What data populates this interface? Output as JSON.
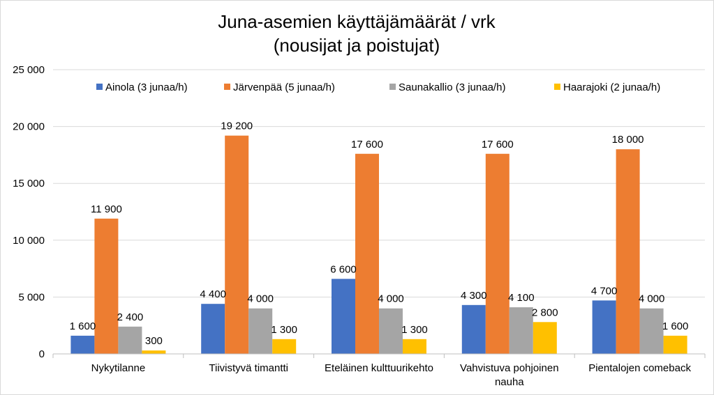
{
  "chart_data": {
    "type": "bar",
    "title": "Juna-asemien käyttäjämäärät / vrk",
    "subtitle": "(nousijat ja poistujat)",
    "xlabel": "",
    "ylabel": "",
    "ylim": [
      0,
      25000
    ],
    "yticks": [
      0,
      5000,
      10000,
      15000,
      20000,
      25000
    ],
    "ytick_labels": [
      "0",
      "5 000",
      "10 000",
      "15 000",
      "20 000",
      "25 000"
    ],
    "grid": true,
    "legend_position": "top",
    "categories": [
      [
        "Nykytilanne"
      ],
      [
        "Tiivistyvä timantti"
      ],
      [
        "Eteläinen kulttuurikehto"
      ],
      [
        "Vahvistuva pohjoinen",
        "nauha"
      ],
      [
        "Pientalojen comeback"
      ]
    ],
    "series": [
      {
        "name": "Ainola (3 junaa/h)",
        "color": "#4472C4",
        "values": [
          1600,
          4400,
          6600,
          4300,
          4700
        ],
        "labels": [
          "1 600",
          "4 400",
          "6 600",
          "4 300",
          "4 700"
        ]
      },
      {
        "name": "Järvenpää (5 junaa/h)",
        "color": "#ED7D31",
        "values": [
          11900,
          19200,
          17600,
          17600,
          18000
        ],
        "labels": [
          "11 900",
          "19 200",
          "17 600",
          "17 600",
          "18 000"
        ]
      },
      {
        "name": "Saunakallio (3 junaa/h)",
        "color": "#A5A5A5",
        "values": [
          2400,
          4000,
          4000,
          4100,
          4000
        ],
        "labels": [
          "2 400",
          "4 000",
          "4 000",
          "4 100",
          "4 000"
        ]
      },
      {
        "name": "Haarajoki (2 junaa/h)",
        "color": "#FFC000",
        "values": [
          300,
          1300,
          1300,
          2800,
          1600
        ],
        "labels": [
          "300",
          "1 300",
          "1 300",
          "2 800",
          "1 600"
        ]
      }
    ]
  }
}
